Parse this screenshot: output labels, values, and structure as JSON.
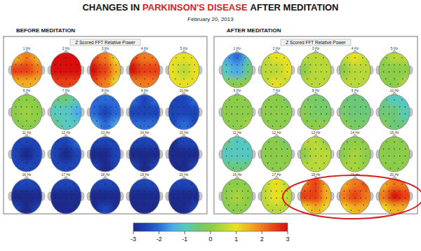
{
  "chart_data": {
    "type": "topomap",
    "title": [
      "CHANGES IN",
      "PARKINSON'S DISEASE",
      "AFTER MEDITATION"
    ],
    "subtitle": "February 20, 2013",
    "colorbar": {
      "range": [
        -3,
        3
      ],
      "ticks": [
        -3,
        -2,
        -1,
        0,
        1,
        2,
        3
      ]
    },
    "panels": [
      {
        "title": "BEFORE MEDITATION",
        "subtitle": "Z Scored FFT Relative Power",
        "maps": [
          {
            "label": "1 Hz",
            "cells": [
              [
                1.5,
                2,
                1.5
              ],
              [
                2.5,
                2.5,
                2
              ],
              [
                1.5,
                1.5,
                1.5
              ]
            ]
          },
          {
            "label": "2 Hz",
            "cells": [
              [
                3,
                3,
                3
              ],
              [
                3,
                3,
                3
              ],
              [
                2.5,
                2.5,
                2.5
              ]
            ]
          },
          {
            "label": "3 Hz",
            "cells": [
              [
                2.5,
                2,
                1
              ],
              [
                3,
                2.5,
                1.5
              ],
              [
                2.5,
                2,
                1
              ]
            ]
          },
          {
            "label": "4 Hz",
            "cells": [
              [
                2.5,
                2,
                2
              ],
              [
                3,
                2.5,
                2.5
              ],
              [
                2,
                2,
                2
              ]
            ]
          },
          {
            "label": "5 Hz",
            "cells": [
              [
                1,
                1,
                1
              ],
              [
                1,
                0.5,
                1
              ],
              [
                1,
                1,
                1
              ]
            ]
          },
          {
            "label": "6 Hz",
            "cells": [
              [
                0,
                0,
                0
              ],
              [
                0,
                0.2,
                0
              ],
              [
                0,
                0,
                0
              ]
            ]
          },
          {
            "label": "7 Hz",
            "cells": [
              [
                -0.5,
                -0.5,
                -1
              ],
              [
                -1,
                -1,
                -1.5
              ],
              [
                -0.5,
                -1,
                -1
              ]
            ]
          },
          {
            "label": "8 Hz",
            "cells": [
              [
                -2,
                -2,
                -2
              ],
              [
                -2,
                -2.5,
                -2
              ],
              [
                -1.5,
                -2,
                -1.5
              ]
            ]
          },
          {
            "label": "9 Hz",
            "cells": [
              [
                -2,
                -2.5,
                -2
              ],
              [
                -2.5,
                -2.5,
                -2.5
              ],
              [
                -2,
                -2,
                -2
              ]
            ]
          },
          {
            "label": "10 Hz",
            "cells": [
              [
                -2.5,
                -2.5,
                -2
              ],
              [
                -2.5,
                -2.5,
                -2.5
              ],
              [
                -2.5,
                -2,
                -2.5
              ]
            ]
          },
          {
            "label": "11 Hz",
            "cells": [
              [
                -2.5,
                -2.5,
                -2.5
              ],
              [
                -2.5,
                -3,
                -2.5
              ],
              [
                -2.5,
                -2.5,
                -2.5
              ]
            ]
          },
          {
            "label": "12 Hz",
            "cells": [
              [
                -2.5,
                -2.5,
                -2
              ],
              [
                -2.5,
                -3,
                -2.5
              ],
              [
                -2.5,
                -2.5,
                -2.5
              ]
            ]
          },
          {
            "label": "13 Hz",
            "cells": [
              [
                -2.5,
                -2.5,
                -2.5
              ],
              [
                -3,
                -3,
                -2.5
              ],
              [
                -2.5,
                -3,
                -2.5
              ]
            ]
          },
          {
            "label": "14 Hz",
            "cells": [
              [
                -2.5,
                -2.5,
                -2.5
              ],
              [
                -3,
                -3,
                -3
              ],
              [
                -2.5,
                -3,
                -2.5
              ]
            ]
          },
          {
            "label": "15 Hz",
            "cells": [
              [
                -3,
                -2.5,
                -2.5
              ],
              [
                -3,
                -3,
                -3
              ],
              [
                -3,
                -3,
                -2.5
              ]
            ]
          },
          {
            "label": "16 Hz",
            "cells": [
              [
                -2.5,
                -2.5,
                -2.5
              ],
              [
                -3,
                -3,
                -3
              ],
              [
                -2.5,
                -3,
                -2.5
              ]
            ]
          },
          {
            "label": "17 Hz",
            "cells": [
              [
                -2.5,
                -2.5,
                -2.5
              ],
              [
                -3,
                -3,
                -3
              ],
              [
                -3,
                -3,
                -3
              ]
            ]
          },
          {
            "label": "18 Hz",
            "cells": [
              [
                -2.5,
                -2.5,
                -2.5
              ],
              [
                -3,
                -3,
                -3
              ],
              [
                -3,
                -2.5,
                -3
              ]
            ]
          },
          {
            "label": "19 Hz",
            "cells": [
              [
                -2.5,
                -2.5,
                -2.5
              ],
              [
                -3,
                -3,
                -3
              ],
              [
                -3,
                -3,
                -3
              ]
            ]
          },
          {
            "label": "20 Hz",
            "cells": [
              [
                -2.5,
                -2.5,
                -2.5
              ],
              [
                -3,
                -3,
                -3
              ],
              [
                -3,
                -3,
                -2.5
              ]
            ]
          }
        ]
      },
      {
        "title": "AFTER MEDITATION",
        "subtitle": "Z Scored FFT Relative Power",
        "maps": [
          {
            "label": "1 Hz",
            "cells": [
              [
                -1.5,
                -2,
                -1
              ],
              [
                -1,
                -1.5,
                -0.5
              ],
              [
                0,
                0,
                0
              ]
            ]
          },
          {
            "label": "2 Hz",
            "cells": [
              [
                0.5,
                1,
                1
              ],
              [
                0.5,
                0.5,
                1
              ],
              [
                0.5,
                1,
                0.5
              ]
            ]
          },
          {
            "label": "3 Hz",
            "cells": [
              [
                0.5,
                0.5,
                0.5
              ],
              [
                0,
                0.5,
                0.5
              ],
              [
                0.5,
                0.5,
                0.5
              ]
            ]
          },
          {
            "label": "4 Hz",
            "cells": [
              [
                0.5,
                1,
                0.5
              ],
              [
                0,
                0.5,
                0.5
              ],
              [
                0.5,
                0.5,
                0.5
              ]
            ]
          },
          {
            "label": "5 Hz",
            "cells": [
              [
                0,
                0.5,
                0.5
              ],
              [
                0,
                0,
                0
              ],
              [
                0,
                0,
                0.5
              ]
            ]
          },
          {
            "label": "6 Hz",
            "cells": [
              [
                0,
                0,
                0
              ],
              [
                0,
                0,
                0
              ],
              [
                0,
                0,
                0.3
              ]
            ]
          },
          {
            "label": "7 Hz",
            "cells": [
              [
                0,
                0,
                -0.3
              ],
              [
                0,
                0,
                0
              ],
              [
                0,
                0,
                0
              ]
            ]
          },
          {
            "label": "8 Hz",
            "cells": [
              [
                -0.3,
                -0.3,
                -0.5
              ],
              [
                0,
                -0.3,
                -0.3
              ],
              [
                0,
                0,
                0
              ]
            ]
          },
          {
            "label": "9 Hz",
            "cells": [
              [
                -0.5,
                -0.5,
                -0.5
              ],
              [
                -0.3,
                -0.5,
                -0.5
              ],
              [
                0,
                -0.3,
                -0.3
              ]
            ]
          },
          {
            "label": "10 Hz",
            "cells": [
              [
                -0.5,
                -1,
                -1
              ],
              [
                -0.5,
                -0.5,
                -1
              ],
              [
                0,
                -0.5,
                -0.5
              ]
            ]
          },
          {
            "label": "11 Hz",
            "cells": [
              [
                -0.5,
                -1,
                -1
              ],
              [
                -1,
                -1,
                -1
              ],
              [
                -0.5,
                -0.5,
                -0.5
              ]
            ]
          },
          {
            "label": "12 Hz",
            "cells": [
              [
                0,
                0,
                -0.5
              ],
              [
                0,
                0,
                0
              ],
              [
                0,
                0,
                0
              ]
            ]
          },
          {
            "label": "13 Hz",
            "cells": [
              [
                0.5,
                0.5,
                0
              ],
              [
                0,
                0.5,
                0.5
              ],
              [
                0.5,
                0.5,
                0.5
              ]
            ]
          },
          {
            "label": "14 Hz",
            "cells": [
              [
                0,
                0,
                0
              ],
              [
                0,
                0.3,
                0
              ],
              [
                0.3,
                0.3,
                0
              ]
            ]
          },
          {
            "label": "15 Hz",
            "cells": [
              [
                0,
                0,
                0
              ],
              [
                0,
                0,
                0
              ],
              [
                0,
                0,
                0
              ]
            ]
          },
          {
            "label": "16 Hz",
            "cells": [
              [
                0,
                0,
                0
              ],
              [
                0,
                0.3,
                0
              ],
              [
                0,
                0,
                0
              ]
            ]
          },
          {
            "label": "17 Hz",
            "cells": [
              [
                0.5,
                1,
                0.5
              ],
              [
                0.5,
                1,
                0.5
              ],
              [
                0.5,
                0.5,
                0.5
              ]
            ]
          },
          {
            "label": "18 Hz",
            "cells": [
              [
                2,
                2.5,
                1.5
              ],
              [
                2.5,
                2.5,
                1.5
              ],
              [
                1,
                1.5,
                1
              ]
            ],
            "highlight": true
          },
          {
            "label": "19 Hz",
            "cells": [
              [
                1.5,
                2,
                2.5
              ],
              [
                2,
                2.5,
                2
              ],
              [
                1,
                1.5,
                1.5
              ]
            ],
            "highlight": true
          },
          {
            "label": "20 Hz",
            "cells": [
              [
                1.5,
                2,
                2
              ],
              [
                2,
                3,
                2.5
              ],
              [
                1,
                1.5,
                1.5
              ]
            ],
            "highlight": true
          }
        ]
      }
    ]
  }
}
